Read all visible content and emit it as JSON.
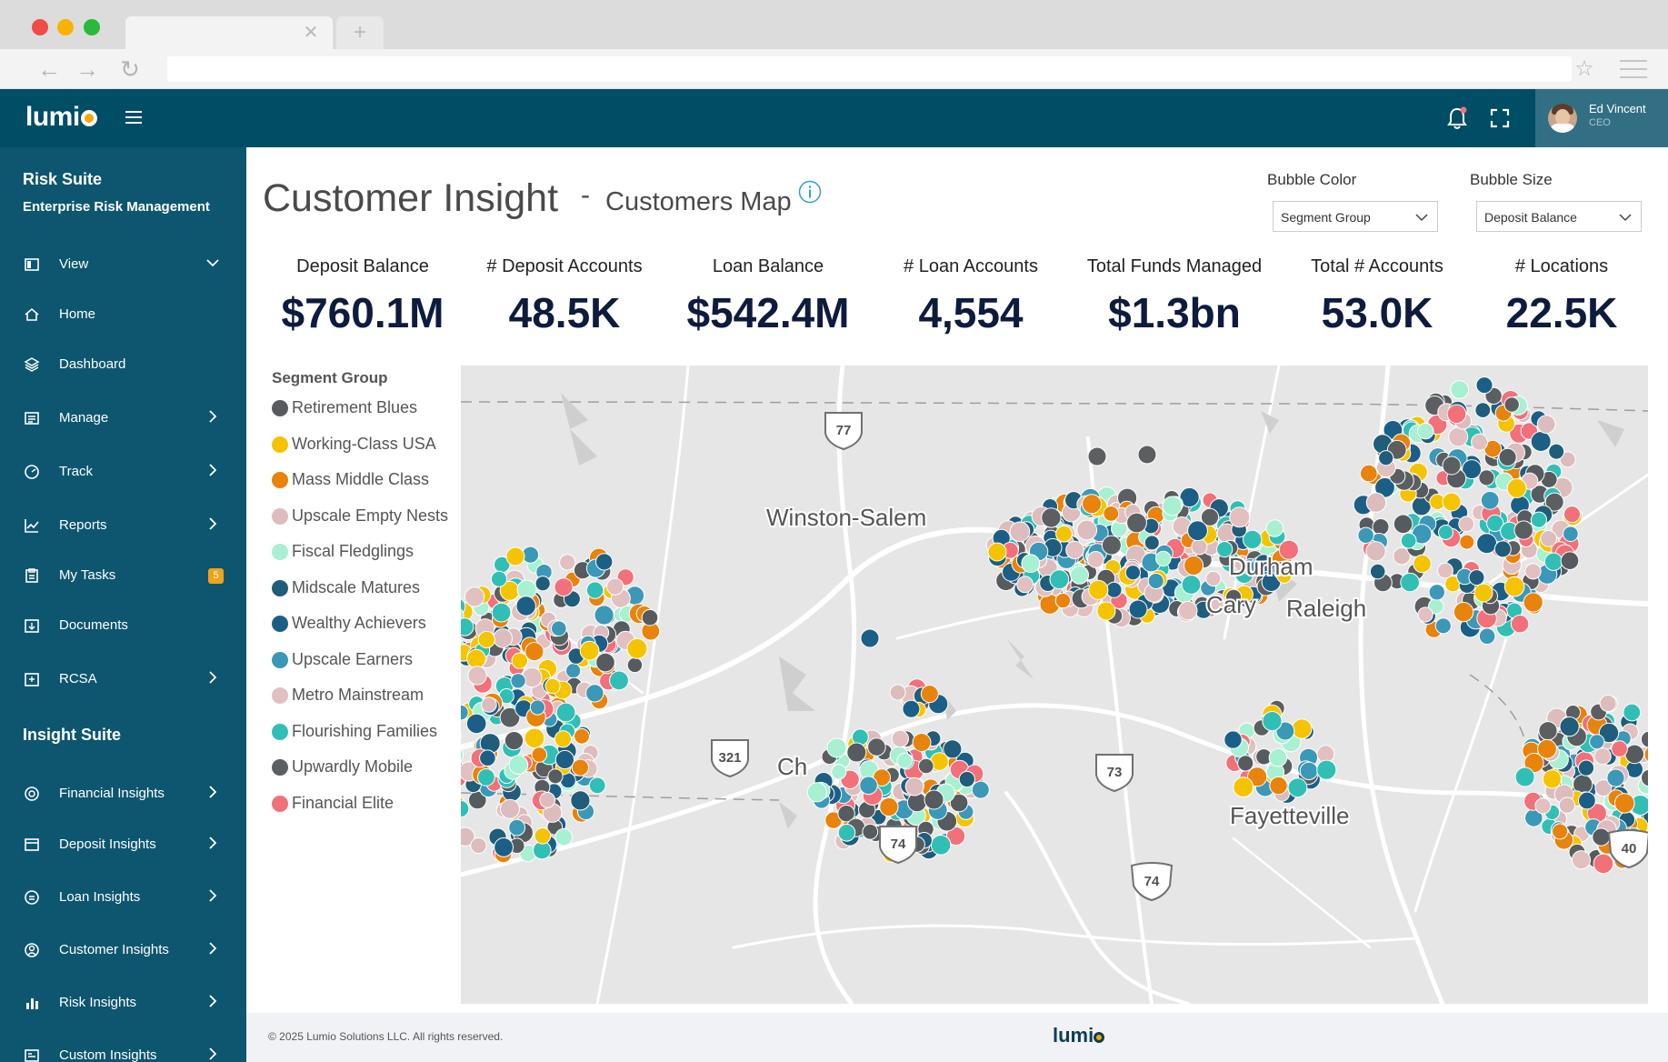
{
  "app": {
    "brand": "lumio",
    "user": {
      "name": "Ed Vincent",
      "role": "CEO"
    }
  },
  "sidebar": {
    "section1": {
      "title": "Risk Suite",
      "subtitle": "Enterprise Risk Management"
    },
    "items1": [
      {
        "label": "View",
        "icon": "view-icon",
        "chevron": "down"
      },
      {
        "label": "Home",
        "icon": "home-icon"
      },
      {
        "label": "Dashboard",
        "icon": "layers-icon"
      },
      {
        "label": "Manage",
        "icon": "manage-icon",
        "chevron": "right"
      },
      {
        "label": "Track",
        "icon": "gauge-icon",
        "chevron": "right"
      },
      {
        "label": "Reports",
        "icon": "chart-line-icon",
        "chevron": "right"
      },
      {
        "label": "My Tasks",
        "icon": "clipboard-icon",
        "badge": "5"
      },
      {
        "label": "Documents",
        "icon": "document-icon"
      },
      {
        "label": "RCSA",
        "icon": "rcsa-icon",
        "chevron": "right"
      }
    ],
    "section2": {
      "title": "Insight Suite"
    },
    "items2": [
      {
        "label": "Financial Insights",
        "icon": "dollar-icon",
        "chevron": "right"
      },
      {
        "label": "Deposit Insights",
        "icon": "deposit-icon",
        "chevron": "right"
      },
      {
        "label": "Loan Insights",
        "icon": "loan-icon",
        "chevron": "right"
      },
      {
        "label": "Customer Insights",
        "icon": "customer-icon",
        "chevron": "right"
      },
      {
        "label": "Risk Insights",
        "icon": "bar-chart-icon",
        "chevron": "right"
      },
      {
        "label": "Custom Insights",
        "icon": "custom-icon",
        "chevron": "right"
      }
    ]
  },
  "page": {
    "title": "Customer Insight",
    "dash": "-",
    "subtitle": "Customers Map",
    "bubble_color": {
      "label": "Bubble Color",
      "value": "Segment Group"
    },
    "bubble_size": {
      "label": "Bubble Size",
      "value": "Deposit Balance"
    }
  },
  "kpis": [
    {
      "label": "Deposit Balance",
      "value": "$760.1M"
    },
    {
      "label": "# Deposit Accounts",
      "value": "48.5K"
    },
    {
      "label": "Loan Balance",
      "value": "$542.4M"
    },
    {
      "label": "# Loan Accounts",
      "value": "4,554"
    },
    {
      "label": "Total Funds Managed",
      "value": "$1.3bn"
    },
    {
      "label": "Total # Accounts",
      "value": "53.0K"
    },
    {
      "label": "# Locations",
      "value": "22.5K"
    }
  ],
  "legend": {
    "title": "Segment Group",
    "items": [
      {
        "label": "Retirement Blues",
        "color": "#555b5e"
      },
      {
        "label": "Working-Class USA",
        "color": "#f5c400"
      },
      {
        "label": "Mass Middle Class",
        "color": "#e8830c"
      },
      {
        "label": "Upscale Empty Nests",
        "color": "#dcbcbc"
      },
      {
        "label": "Fiscal Fledglings",
        "color": "#a8f0d2"
      },
      {
        "label": "Midscale Matures",
        "color": "#1f5d7a"
      },
      {
        "label": "Wealthy Achievers",
        "color": "#1c5f86"
      },
      {
        "label": "Upscale Earners",
        "color": "#3b98b7"
      },
      {
        "label": "Metro Mainstream",
        "color": "#e2c0c0"
      },
      {
        "label": "Flourishing Families",
        "color": "#31bfb5"
      },
      {
        "label": "Upwardly Mobile",
        "color": "#5b5f61"
      },
      {
        "label": "Financial Elite",
        "color": "#f2707a"
      }
    ]
  },
  "map": {
    "cities": [
      "Winston-Salem",
      "Durham",
      "Cary",
      "Raleigh",
      "Ch",
      "Fayetteville"
    ],
    "shields": [
      "77",
      "321",
      "73",
      "74",
      "74",
      "40"
    ]
  },
  "footer": {
    "copyright": "© 2025 Lumio Solutions LLC. All rights reserved.",
    "brand": "lumio"
  }
}
